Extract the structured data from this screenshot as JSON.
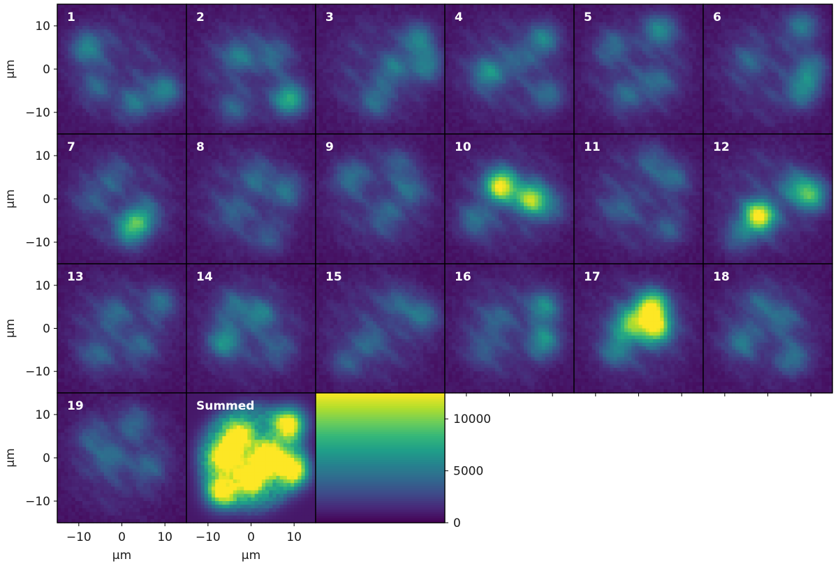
{
  "chart_data": {
    "type": "heatmap",
    "colormap": "viridis",
    "colorbar": {
      "range": [
        0,
        12500
      ],
      "ticks": [
        0,
        5000,
        10000
      ],
      "tick_labels": [
        "0",
        "5000",
        "10000"
      ]
    },
    "x_axis": {
      "label": "μm",
      "range": [
        -15,
        15
      ],
      "ticks": [
        -10,
        0,
        10
      ],
      "tick_labels": [
        "−10",
        "0",
        "10"
      ]
    },
    "y_axis": {
      "label": "μm",
      "range": [
        -15,
        15
      ],
      "ticks": [
        10,
        0,
        -10
      ],
      "tick_labels": [
        "10",
        "0",
        "−10"
      ]
    },
    "panels": [
      {
        "label": "1",
        "blobs": [
          {
            "x": -8,
            "y": 5,
            "peak": 4500
          },
          {
            "x": 10,
            "y": -5,
            "peak": 4500
          },
          {
            "x": 3,
            "y": -8,
            "peak": 3200
          },
          {
            "x": -6,
            "y": -4,
            "peak": 2300
          }
        ]
      },
      {
        "label": "2",
        "blobs": [
          {
            "x": 9,
            "y": -7,
            "peak": 6700
          },
          {
            "x": -3,
            "y": 3,
            "peak": 3600
          },
          {
            "x": 5,
            "y": 3,
            "peak": 2900
          },
          {
            "x": -4,
            "y": -9,
            "peak": 2500
          }
        ]
      },
      {
        "label": "3",
        "blobs": [
          {
            "x": 9,
            "y": 7,
            "peak": 4300
          },
          {
            "x": 11,
            "y": 1,
            "peak": 4000
          },
          {
            "x": 3,
            "y": 0,
            "peak": 3300
          },
          {
            "x": -1,
            "y": -7,
            "peak": 3000
          }
        ]
      },
      {
        "label": "4",
        "blobs": [
          {
            "x": -5,
            "y": -1,
            "peak": 4600
          },
          {
            "x": 8,
            "y": 7,
            "peak": 4300
          },
          {
            "x": 9,
            "y": -6,
            "peak": 3200
          },
          {
            "x": 2,
            "y": 2,
            "peak": 2400
          }
        ]
      },
      {
        "label": "5",
        "blobs": [
          {
            "x": 5,
            "y": 9,
            "peak": 4600
          },
          {
            "x": -6,
            "y": 5,
            "peak": 2800
          },
          {
            "x": 4,
            "y": -3,
            "peak": 2800
          },
          {
            "x": -3,
            "y": -6,
            "peak": 2500
          }
        ]
      },
      {
        "label": "6",
        "blobs": [
          {
            "x": 8,
            "y": 10,
            "peak": 4000
          },
          {
            "x": 8,
            "y": -5,
            "peak": 4200
          },
          {
            "x": 10,
            "y": 0,
            "peak": 3600
          },
          {
            "x": -4,
            "y": 2,
            "peak": 2200
          }
        ]
      },
      {
        "label": "7",
        "blobs": [
          {
            "x": 2,
            "y": -7,
            "peak": 5900
          },
          {
            "x": 5,
            "y": -4,
            "peak": 4200
          },
          {
            "x": -2,
            "y": 5,
            "peak": 2000
          },
          {
            "x": -7,
            "y": 0,
            "peak": 1800
          }
        ]
      },
      {
        "label": "8",
        "blobs": [
          {
            "x": 8,
            "y": 2,
            "peak": 3200
          },
          {
            "x": 1,
            "y": 5,
            "peak": 2600
          },
          {
            "x": -4,
            "y": -3,
            "peak": 2300
          },
          {
            "x": 4,
            "y": -9,
            "peak": 2100
          }
        ]
      },
      {
        "label": "9",
        "blobs": [
          {
            "x": -7,
            "y": 5,
            "peak": 3400
          },
          {
            "x": 7,
            "y": 2,
            "peak": 2800
          },
          {
            "x": 1,
            "y": -4,
            "peak": 2400
          },
          {
            "x": 4,
            "y": 8,
            "peak": 2100
          }
        ]
      },
      {
        "label": "10",
        "blobs": [
          {
            "x": -2,
            "y": 3,
            "peak": 11000
          },
          {
            "x": 5,
            "y": 0,
            "peak": 9300
          },
          {
            "x": -8,
            "y": -5,
            "peak": 3400
          },
          {
            "x": 10,
            "y": -2,
            "peak": 2500
          }
        ]
      },
      {
        "label": "11",
        "blobs": [
          {
            "x": 8,
            "y": 5,
            "peak": 3000
          },
          {
            "x": -4,
            "y": -2,
            "peak": 2400
          },
          {
            "x": 3,
            "y": 9,
            "peak": 2200
          },
          {
            "x": 7,
            "y": -7,
            "peak": 2200
          }
        ]
      },
      {
        "label": "12",
        "blobs": [
          {
            "x": -2,
            "y": -4,
            "peak": 11500
          },
          {
            "x": 10,
            "y": 1,
            "peak": 7200
          },
          {
            "x": 6,
            "y": 3,
            "peak": 3300
          },
          {
            "x": -7,
            "y": -9,
            "peak": 2800
          }
        ]
      },
      {
        "label": "13",
        "blobs": [
          {
            "x": 9,
            "y": 6,
            "peak": 3300
          },
          {
            "x": -2,
            "y": 3,
            "peak": 2700
          },
          {
            "x": -6,
            "y": -6,
            "peak": 2500
          },
          {
            "x": 4,
            "y": -4,
            "peak": 2300
          }
        ]
      },
      {
        "label": "14",
        "blobs": [
          {
            "x": -6,
            "y": -3,
            "peak": 5000
          },
          {
            "x": 2,
            "y": 3,
            "peak": 3800
          },
          {
            "x": -4,
            "y": 5,
            "peak": 2700
          },
          {
            "x": 6,
            "y": -5,
            "peak": 2300
          }
        ]
      },
      {
        "label": "15",
        "blobs": [
          {
            "x": 10,
            "y": 3,
            "peak": 3600
          },
          {
            "x": -2,
            "y": -3,
            "peak": 2600
          },
          {
            "x": 4,
            "y": 6,
            "peak": 2400
          },
          {
            "x": -8,
            "y": -8,
            "peak": 2300
          }
        ]
      },
      {
        "label": "16",
        "blobs": [
          {
            "x": 8,
            "y": 5,
            "peak": 4700
          },
          {
            "x": 8,
            "y": -3,
            "peak": 4900
          },
          {
            "x": -3,
            "y": 2,
            "peak": 2400
          },
          {
            "x": -6,
            "y": -5,
            "peak": 2200
          }
        ]
      },
      {
        "label": "17",
        "blobs": [
          {
            "x": 3,
            "y": 5,
            "peak": 10600
          },
          {
            "x": 4,
            "y": 0,
            "peak": 9800
          },
          {
            "x": -2,
            "y": 1,
            "peak": 7800
          },
          {
            "x": -5,
            "y": -5,
            "peak": 4000
          }
        ]
      },
      {
        "label": "18",
        "blobs": [
          {
            "x": -6,
            "y": -3,
            "peak": 3400
          },
          {
            "x": 6,
            "y": -7,
            "peak": 3300
          },
          {
            "x": 3,
            "y": 2,
            "peak": 2900
          },
          {
            "x": -2,
            "y": 6,
            "peak": 2200
          }
        ]
      },
      {
        "label": "19",
        "blobs": [
          {
            "x": -3,
            "y": 0,
            "peak": 2900
          },
          {
            "x": 3,
            "y": 8,
            "peak": 2600
          },
          {
            "x": 6,
            "y": -2,
            "peak": 2400
          },
          {
            "x": -7,
            "y": 5,
            "peak": 2000
          }
        ]
      },
      {
        "label": "Summed",
        "blobs": [
          {
            "x": 4,
            "y": 0,
            "peak": 12000
          },
          {
            "x": -6,
            "y": 0,
            "peak": 10500
          },
          {
            "x": 9,
            "y": 8,
            "peak": 10500
          },
          {
            "x": 0,
            "y": -5,
            "peak": 9800
          },
          {
            "x": -7,
            "y": -8,
            "peak": 9000
          },
          {
            "x": 10,
            "y": -3,
            "peak": 9500
          },
          {
            "x": -3,
            "y": 5,
            "peak": 9000
          }
        ]
      }
    ]
  }
}
